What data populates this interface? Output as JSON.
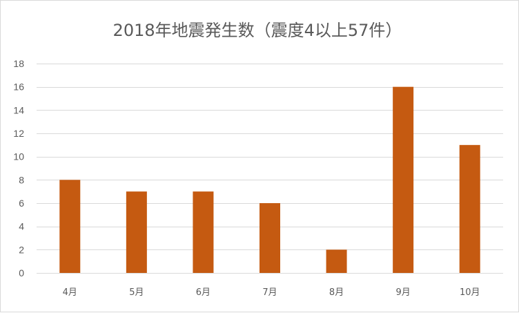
{
  "chart_data": {
    "type": "bar",
    "title": "2018年地震発生数（震度4以上57件）",
    "xlabel": "",
    "ylabel": "",
    "categories": [
      "4月",
      "5月",
      "6月",
      "7月",
      "8月",
      "9月",
      "10月"
    ],
    "values": [
      8,
      7,
      7,
      6,
      2,
      16,
      11
    ],
    "ylim": [
      0,
      18
    ],
    "yticks": [
      0,
      2,
      4,
      6,
      8,
      10,
      12,
      14,
      16,
      18
    ],
    "grid": true,
    "legend": "none",
    "bar_color": "#c55a11"
  }
}
